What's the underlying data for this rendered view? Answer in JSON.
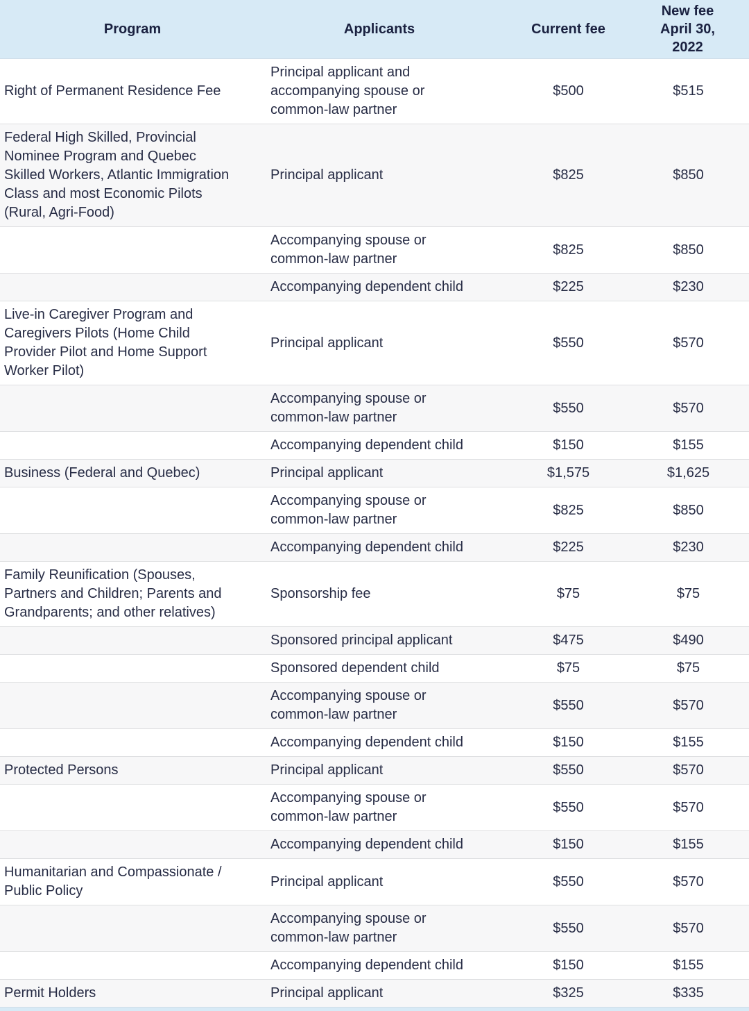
{
  "colors": {
    "header_bg": "#d7eaf6",
    "header_text": "#1a2140",
    "body_text": "#272c45",
    "row_alt_bg": "#f7f7f8",
    "row_border": "#dedfe1",
    "bottom_strip_bg": "#d7eaf6"
  },
  "table": {
    "columns": [
      {
        "label": "Program"
      },
      {
        "label": "Applicants"
      },
      {
        "label": "Current fee"
      },
      {
        "label": "New fee\nApril 30, 2022"
      }
    ],
    "rows": [
      {
        "program": "Right of Permanent Residence Fee",
        "applicants": "Principal applicant and\naccompanying spouse or\ncommon-law partner",
        "current_fee": "$500",
        "new_fee": "$515"
      },
      {
        "program": "Federal High Skilled, Provincial\nNominee Program and Quebec\nSkilled Workers, Atlantic Immigration\nClass and most Economic Pilots\n(Rural, Agri-Food)",
        "applicants": "Principal applicant",
        "current_fee": "$825",
        "new_fee": "$850"
      },
      {
        "program": "",
        "applicants": "Accompanying spouse or\ncommon-law partner",
        "current_fee": "$825",
        "new_fee": "$850"
      },
      {
        "program": "",
        "applicants": "Accompanying dependent child",
        "current_fee": "$225",
        "new_fee": "$230"
      },
      {
        "program": "Live-in Caregiver Program and\nCaregivers Pilots (Home Child\nProvider Pilot and Home Support\nWorker Pilot)",
        "applicants": "Principal applicant",
        "current_fee": "$550",
        "new_fee": "$570"
      },
      {
        "program": "",
        "applicants": "Accompanying spouse or\ncommon-law partner",
        "current_fee": "$550",
        "new_fee": "$570"
      },
      {
        "program": "",
        "applicants": "Accompanying dependent child",
        "current_fee": "$150",
        "new_fee": "$155"
      },
      {
        "program": "Business (Federal and Quebec)",
        "applicants": "Principal applicant",
        "current_fee": "$1,575",
        "new_fee": "$1,625"
      },
      {
        "program": "",
        "applicants": "Accompanying spouse or\ncommon-law partner",
        "current_fee": "$825",
        "new_fee": "$850"
      },
      {
        "program": "",
        "applicants": "Accompanying dependent child",
        "current_fee": "$225",
        "new_fee": "$230"
      },
      {
        "program": "Family Reunification (Spouses,\nPartners and Children; Parents and\nGrandparents; and other relatives)",
        "applicants": "Sponsorship fee",
        "current_fee": "$75",
        "new_fee": "$75"
      },
      {
        "program": "",
        "applicants": "Sponsored principal applicant",
        "current_fee": "$475",
        "new_fee": "$490"
      },
      {
        "program": "",
        "applicants": "Sponsored dependent child",
        "current_fee": "$75",
        "new_fee": "$75"
      },
      {
        "program": "",
        "applicants": "Accompanying spouse or\ncommon-law partner",
        "current_fee": "$550",
        "new_fee": "$570"
      },
      {
        "program": "",
        "applicants": "Accompanying dependent child",
        "current_fee": "$150",
        "new_fee": "$155"
      },
      {
        "program": "Protected Persons",
        "applicants": "Principal applicant",
        "current_fee": "$550",
        "new_fee": "$570"
      },
      {
        "program": "",
        "applicants": "Accompanying spouse or\ncommon-law partner",
        "current_fee": "$550",
        "new_fee": "$570"
      },
      {
        "program": "",
        "applicants": "Accompanying dependent child",
        "current_fee": "$150",
        "new_fee": "$155"
      },
      {
        "program": "Humanitarian and Compassionate /\nPublic Policy",
        "applicants": "Principal applicant",
        "current_fee": "$550",
        "new_fee": "$570"
      },
      {
        "program": "",
        "applicants": "Accompanying spouse or\ncommon-law partner",
        "current_fee": "$550",
        "new_fee": "$570"
      },
      {
        "program": "",
        "applicants": "Accompanying dependent child",
        "current_fee": "$150",
        "new_fee": "$155"
      },
      {
        "program": "Permit Holders",
        "applicants": "Principal applicant",
        "current_fee": "$325",
        "new_fee": "$335"
      }
    ]
  }
}
